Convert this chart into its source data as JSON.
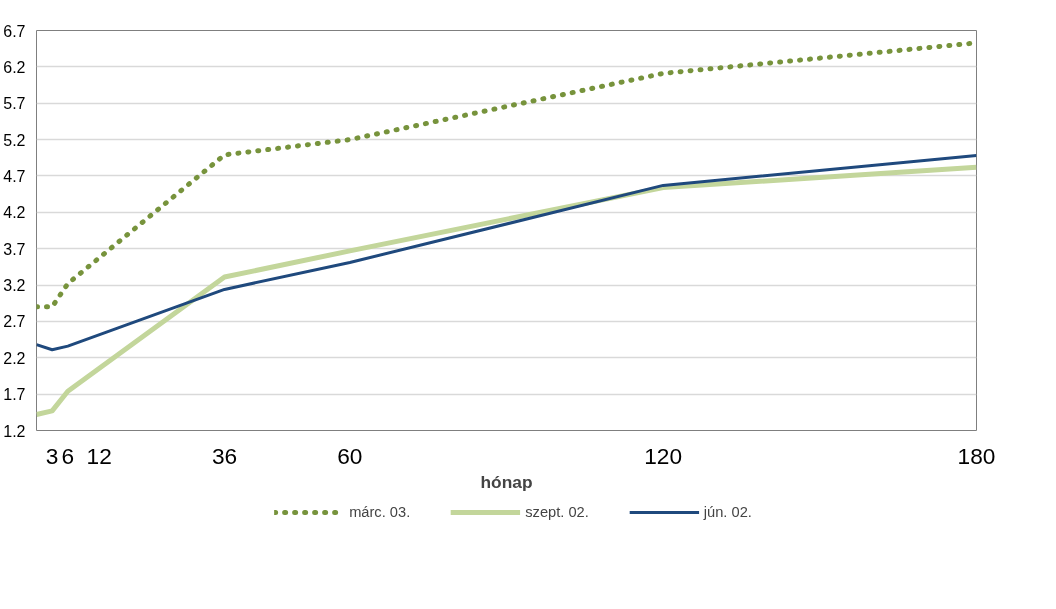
{
  "chart_data": {
    "type": "line",
    "xlabel": "hónap",
    "xlim": [
      0,
      180
    ],
    "xticks": [
      3,
      6,
      12,
      36,
      60,
      120,
      180
    ],
    "ylim": [
      1.2,
      6.7
    ],
    "yticks": [
      1.2,
      1.7,
      2.2,
      2.7,
      3.2,
      3.7,
      4.2,
      4.7,
      5.2,
      5.7,
      6.2,
      6.7
    ],
    "grid": "y",
    "legend": "bottom",
    "marker": "none",
    "x": [
      0,
      3,
      6,
      36,
      60,
      120,
      180
    ],
    "series": [
      {
        "name": "márc. 03.",
        "color": "#77933c",
        "line_style": "dotted",
        "values": [
          2.9,
          2.9,
          3.22,
          4.99,
          5.2,
          6.11,
          6.53
        ]
      },
      {
        "name": "szept. 02.",
        "color": "#c3d69b",
        "line_style": "solid",
        "values": [
          1.42,
          1.47,
          1.74,
          3.31,
          3.67,
          4.54,
          4.82
        ]
      },
      {
        "name": "jún. 02.",
        "color": "#1f497d",
        "line_style": "solid",
        "values": [
          2.38,
          2.31,
          2.36,
          3.14,
          3.51,
          4.57,
          4.98
        ]
      }
    ]
  }
}
